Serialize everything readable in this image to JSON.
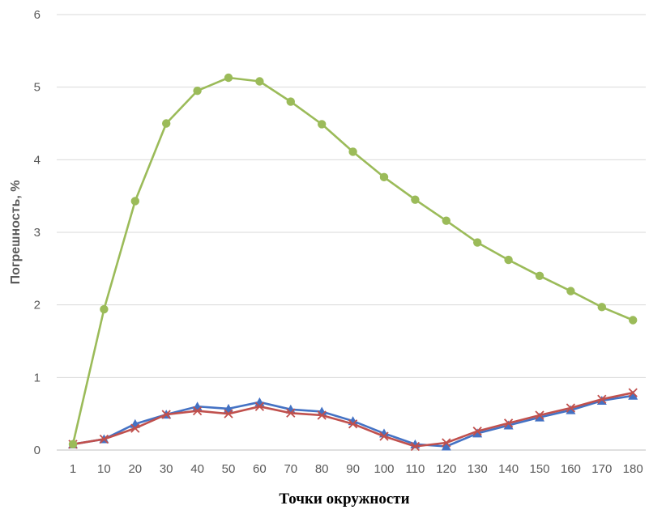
{
  "chart_data": {
    "type": "line",
    "title": "",
    "xlabel": "Точки окружности",
    "ylabel": "Погрешность, %",
    "ylim": [
      0,
      6
    ],
    "yticks": [
      0,
      1,
      2,
      3,
      4,
      5,
      6
    ],
    "grid": true,
    "categories": [
      "1",
      "10",
      "20",
      "30",
      "40",
      "50",
      "60",
      "70",
      "80",
      "90",
      "100",
      "110",
      "120",
      "130",
      "140",
      "150",
      "160",
      "170",
      "180"
    ],
    "series": [
      {
        "marker": "triangle",
        "color": "#4472c4",
        "values": [
          0.08,
          0.15,
          0.36,
          0.49,
          0.6,
          0.57,
          0.66,
          0.56,
          0.53,
          0.4,
          0.23,
          0.08,
          0.05,
          0.23,
          0.34,
          0.45,
          0.55,
          0.68,
          0.75
        ]
      },
      {
        "marker": "x",
        "color": "#c0504d",
        "values": [
          0.08,
          0.15,
          0.3,
          0.49,
          0.54,
          0.5,
          0.6,
          0.51,
          0.48,
          0.36,
          0.19,
          0.05,
          0.1,
          0.26,
          0.37,
          0.48,
          0.58,
          0.7,
          0.79
        ]
      },
      {
        "marker": "circle",
        "color": "#9bbb59",
        "values": [
          0.08,
          1.94,
          3.43,
          4.5,
          4.95,
          5.13,
          5.08,
          4.8,
          4.49,
          4.11,
          3.76,
          3.45,
          3.16,
          2.86,
          2.62,
          2.4,
          2.19,
          1.97,
          1.79
        ]
      }
    ]
  }
}
